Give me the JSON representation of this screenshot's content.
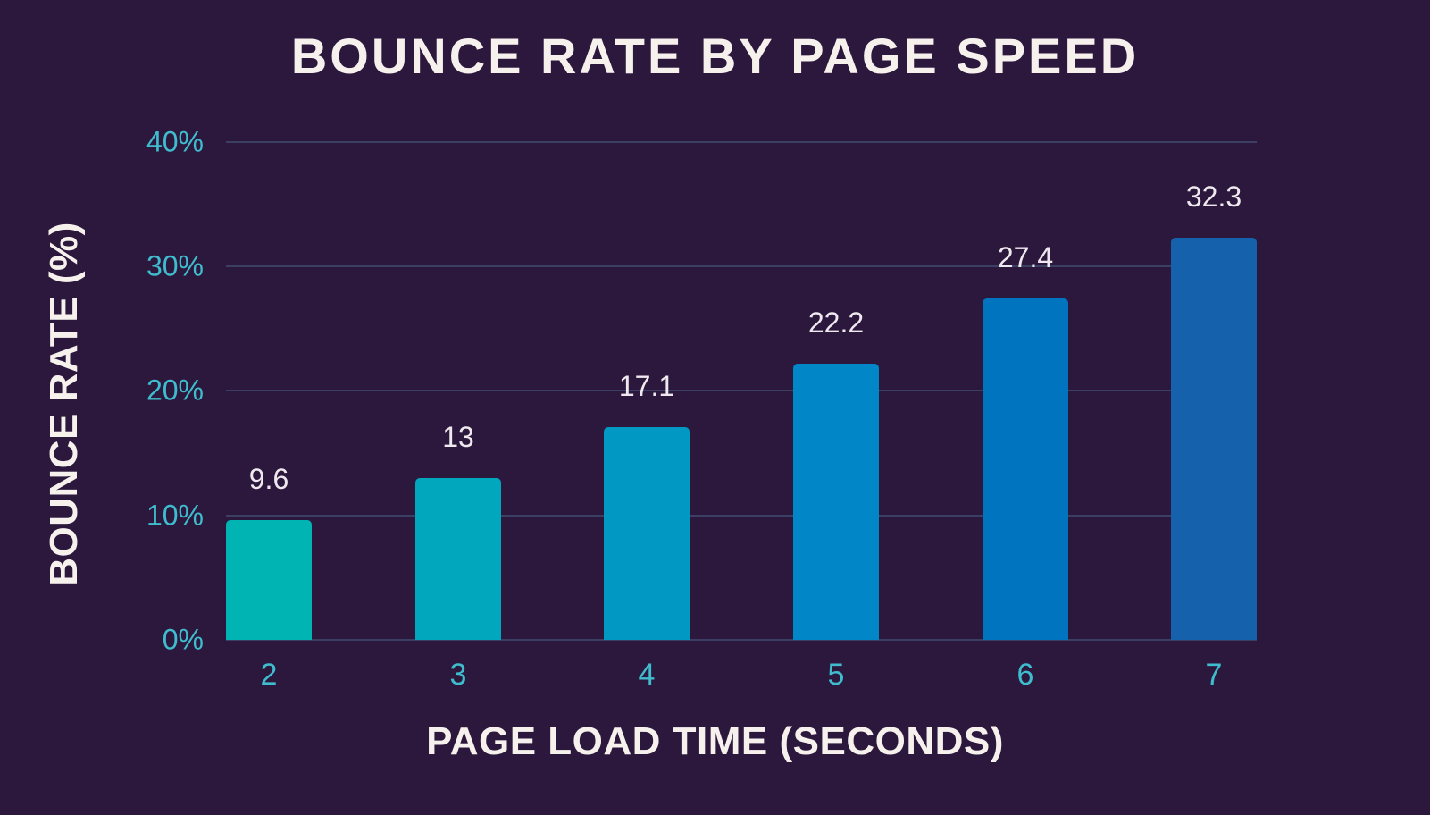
{
  "chart_data": {
    "type": "bar",
    "title": "BOUNCE RATE BY PAGE SPEED",
    "xlabel": "PAGE LOAD TIME (SECONDS)",
    "ylabel": "BOUNCE RATE (%)",
    "categories": [
      "2",
      "3",
      "4",
      "5",
      "6",
      "7"
    ],
    "values": [
      9.6,
      13,
      17.1,
      22.2,
      27.4,
      32.3
    ],
    "value_labels": [
      "9.6",
      "13",
      "17.1",
      "22.2",
      "27.4",
      "32.3"
    ],
    "ylim": [
      0,
      40
    ],
    "yticks": [
      0,
      10,
      20,
      30,
      40
    ],
    "ytick_labels": [
      "0%",
      "10%",
      "20%",
      "30%",
      "40%"
    ],
    "grid": true,
    "legend": null,
    "bar_colors": [
      "#00b4b4",
      "#00a7bd",
      "#0199c4",
      "#0187c8",
      "#0174c0",
      "#1561ab"
    ]
  },
  "colors": {
    "background": "#2c183d",
    "title_text": "#f7f1ee",
    "tick_text": "#3fbccd",
    "gridline": "#3a3f63",
    "value_label": "#efe9ef"
  }
}
